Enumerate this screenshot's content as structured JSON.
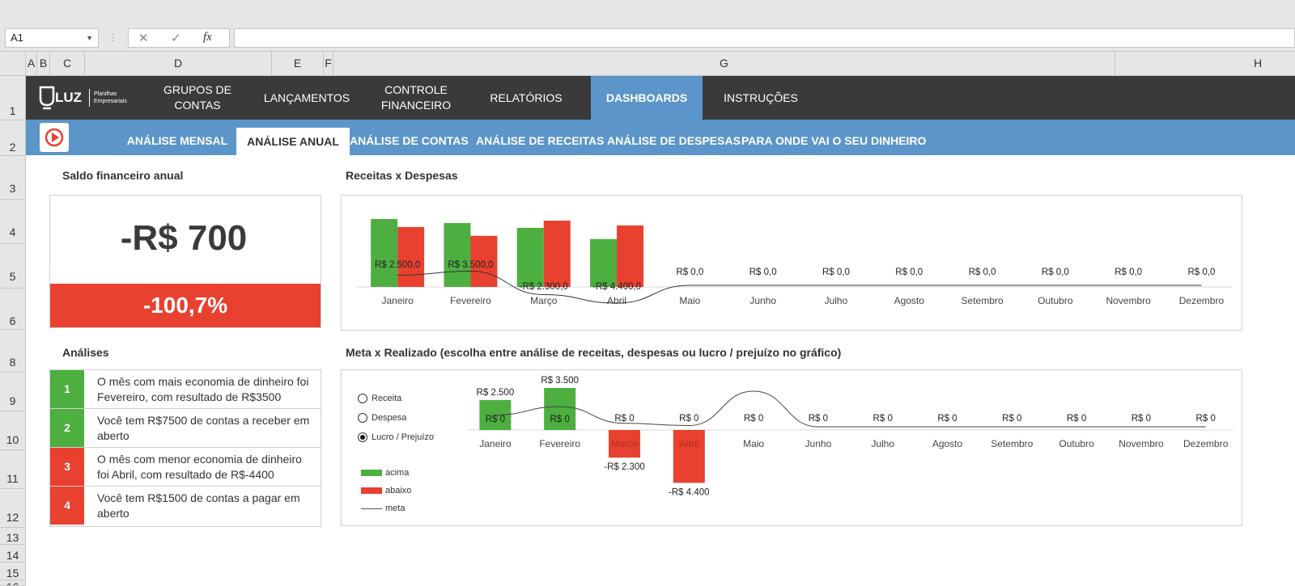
{
  "formula_bar": {
    "name_box": "A1",
    "formula": ""
  },
  "columns": [
    "A",
    "B",
    "C",
    "D",
    "E",
    "F",
    "G",
    "H"
  ],
  "rows": [
    "1",
    "2",
    "3",
    "4",
    "5",
    "6",
    "8",
    "9",
    "10",
    "11",
    "12",
    "13",
    "14",
    "15",
    "16"
  ],
  "logo": {
    "name": "LUZ",
    "tagline_1": "Planilhas",
    "tagline_2": "Empresariais"
  },
  "nav": [
    {
      "l1": "GRUPOS DE",
      "l2": "CONTAS"
    },
    {
      "l1": "LANÇAMENTOS",
      "l2": ""
    },
    {
      "l1": "CONTROLE",
      "l2": "FINANCEIRO"
    },
    {
      "l1": "RELATÓRIOS",
      "l2": ""
    },
    {
      "l1": "DASHBOARDS",
      "l2": ""
    },
    {
      "l1": "INSTRUÇÕES",
      "l2": ""
    }
  ],
  "subnav": [
    "ANÁLISE MENSAL",
    "ANÁLISE ANUAL",
    "ANÁLISE DE CONTAS",
    "ANÁLISE DE RECEITAS",
    "ANÁLISE DE DESPESAS",
    "PARA ONDE VAI O SEU DINHEIRO"
  ],
  "saldo": {
    "title": "Saldo financeiro anual",
    "value": "-R$ 700",
    "percent": "-100,7%"
  },
  "analises": {
    "title": "Análises",
    "items": [
      {
        "num": "1",
        "l1": "O mês com mais economia de dinheiro foi",
        "l2": "Fevereiro, com resultado de R$3500",
        "color": "#4caf3f"
      },
      {
        "num": "2",
        "l1": "Você tem R$7500 de contas a receber em",
        "l2": "aberto",
        "color": "#4caf3f"
      },
      {
        "num": "3",
        "l1": "O mês com menor economia de dinheiro",
        "l2": "foi Abril, com resultado de R$-4400",
        "color": "#e8412f"
      },
      {
        "num": "4",
        "l1": "Você tem R$1500 de contas a pagar em",
        "l2": "aberto",
        "color": "#e8412f"
      }
    ]
  },
  "chart1_title": "Receitas x Despesas",
  "chart2_title": "Meta x Realizado (escolha entre análise de receitas, despesas ou lucro / prejuízo no gráfico)",
  "chart2_controls": {
    "options": [
      "Receita",
      "Despesa",
      "Lucro / Prejuízo"
    ],
    "selected": "Lucro / Prejuízo",
    "legend": [
      "acima",
      "abaixo",
      "meta"
    ]
  },
  "chart_data": [
    {
      "type": "bar",
      "title": "Receitas x Despesas",
      "categories": [
        "Janeiro",
        "Fevereiro",
        "Março",
        "Abril",
        "Maio",
        "Junho",
        "Julho",
        "Agosto",
        "Setembro",
        "Outubro",
        "Novembro",
        "Dezembro"
      ],
      "series": [
        {
          "values": [
            8500,
            8000,
            7400,
            6000,
            0,
            0,
            0,
            0,
            0,
            0,
            0,
            0
          ],
          "color": "#4caf3f"
        },
        {
          "values": [
            7500,
            6400,
            8300,
            7700,
            0,
            0,
            0,
            0,
            0,
            0,
            0,
            0
          ],
          "color": "#e8412f"
        }
      ],
      "line_values": [
        2500,
        3500,
        -2300,
        -4400,
        0,
        0,
        0,
        0,
        0,
        0,
        0,
        0
      ],
      "data_labels": [
        "R$ 2.500,0",
        "R$ 3.500,0",
        "-R$ 2.300,0",
        "-R$ 4.400,0",
        "R$ 0,0",
        "R$ 0,0",
        "R$ 0,0",
        "R$ 0,0",
        "R$ 0,0",
        "R$ 0,0",
        "R$ 0,0",
        "R$ 0,0"
      ]
    },
    {
      "type": "bar",
      "title": "Meta x Realizado",
      "categories": [
        "Janeiro",
        "Fevereiro",
        "Março",
        "Abril",
        "Maio",
        "Junho",
        "Julho",
        "Agosto",
        "Setembro",
        "Outubro",
        "Novembro",
        "Dezembro"
      ],
      "series": [
        {
          "name": "acima",
          "values": [
            2500,
            3500,
            0,
            0,
            0,
            0,
            0,
            0,
            0,
            0,
            0,
            0
          ],
          "color": "#4caf3f"
        },
        {
          "name": "abaixo",
          "values": [
            0,
            0,
            -2300,
            -4400,
            0,
            0,
            0,
            0,
            0,
            0,
            0,
            0
          ],
          "color": "#e8412f"
        }
      ],
      "meta_values": [
        1000,
        1700,
        300,
        100,
        3000,
        0,
        0,
        0,
        0,
        0,
        0,
        0
      ],
      "top_labels": [
        "R$ 2.500",
        "R$ 3.500",
        "R$ 0",
        "R$ 0",
        "R$ 0",
        "R$ 0",
        "R$ 0",
        "R$ 0",
        "R$ 0",
        "R$ 0",
        "R$ 0",
        "R$ 0"
      ],
      "inner_labels": [
        "R$ 0",
        "R$ 0",
        "",
        "",
        "",
        "",
        "",
        "",
        "",
        "",
        "",
        ""
      ],
      "bottom_labels": [
        "",
        "",
        "-R$ 2.300",
        "-R$ 4.400",
        "",
        "",
        "",
        "",
        "",
        "",
        "",
        ""
      ]
    }
  ]
}
